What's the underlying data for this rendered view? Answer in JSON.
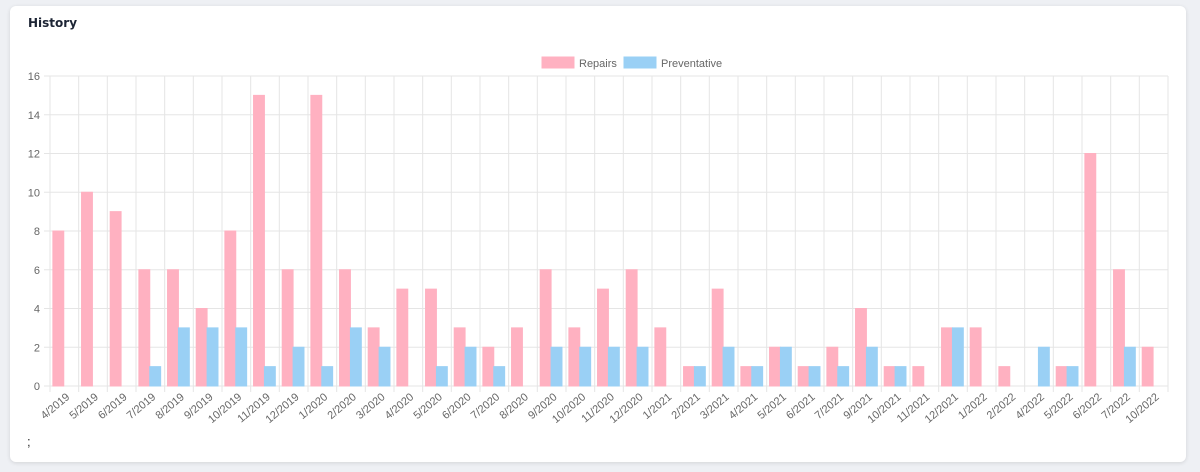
{
  "card": {
    "title": "History",
    "footer_text": ";"
  },
  "colors": {
    "repairs": "#ffb1c1",
    "preventative": "#9ad0f5",
    "grid": "#e5e5e5"
  },
  "chart_data": {
    "type": "bar",
    "title": "",
    "xlabel": "",
    "ylabel": "",
    "ylim": [
      0,
      16
    ],
    "y_ticks": [
      0,
      2,
      4,
      6,
      8,
      10,
      12,
      14,
      16
    ],
    "grid": true,
    "legend_position": "top-center",
    "categories": [
      "4/2019",
      "5/2019",
      "6/2019",
      "7/2019",
      "8/2019",
      "9/2019",
      "10/2019",
      "11/2019",
      "12/2019",
      "1/2020",
      "2/2020",
      "3/2020",
      "4/2020",
      "5/2020",
      "6/2020",
      "7/2020",
      "8/2020",
      "9/2020",
      "10/2020",
      "11/2020",
      "12/2020",
      "1/2021",
      "2/2021",
      "3/2021",
      "4/2021",
      "5/2021",
      "6/2021",
      "7/2021",
      "9/2021",
      "10/2021",
      "11/2021",
      "12/2021",
      "1/2022",
      "2/2022",
      "4/2022",
      "5/2022",
      "6/2022",
      "7/2022",
      "10/2022"
    ],
    "series": [
      {
        "name": "Repairs",
        "values": [
          8,
          10,
          9,
          6,
          6,
          4,
          8,
          15,
          6,
          15,
          6,
          3,
          5,
          5,
          3,
          2,
          3,
          6,
          3,
          5,
          6,
          3,
          1,
          5,
          1,
          2,
          1,
          2,
          4,
          1,
          1,
          3,
          3,
          1,
          0,
          1,
          12,
          6,
          2
        ]
      },
      {
        "name": "Preventative",
        "values": [
          0,
          0,
          0,
          1,
          3,
          3,
          3,
          1,
          2,
          1,
          3,
          2,
          0,
          1,
          2,
          1,
          0,
          2,
          2,
          2,
          2,
          0,
          1,
          2,
          1,
          2,
          1,
          1,
          2,
          1,
          0,
          3,
          0,
          0,
          2,
          1,
          0,
          2,
          0
        ]
      }
    ]
  }
}
